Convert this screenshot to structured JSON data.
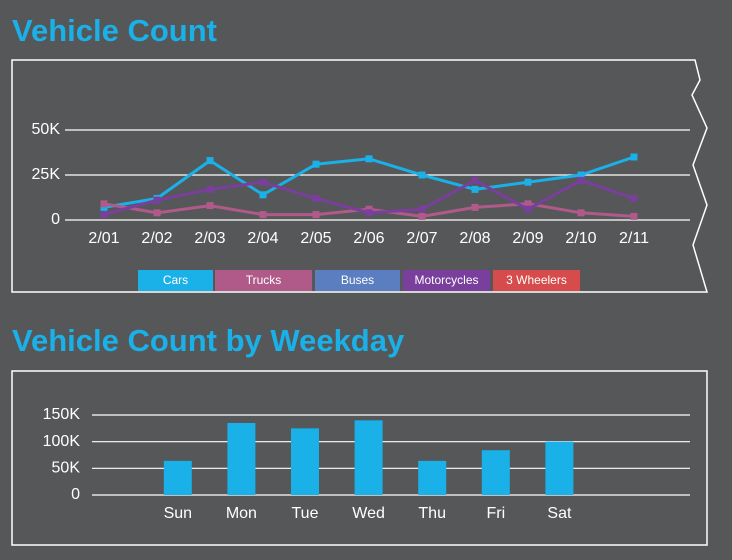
{
  "chart_data": [
    {
      "type": "line",
      "title": "Vehicle Count",
      "categories": [
        "2/01",
        "2/02",
        "2/03",
        "2/04",
        "2/05",
        "2/06",
        "2/07",
        "2/08",
        "2/09",
        "2/10",
        "2/11"
      ],
      "series": [
        {
          "name": "Cars",
          "color": "#1ab0e8",
          "values": [
            7000,
            12000,
            33000,
            14000,
            31000,
            34000,
            25000,
            17000,
            21000,
            25000,
            35000
          ]
        },
        {
          "name": "Trucks",
          "color": "#b05a8a",
          "values": [
            9000,
            4000,
            8000,
            3000,
            3000,
            6000,
            2000,
            7000,
            9000,
            4000,
            2000
          ]
        },
        {
          "name": "Buses",
          "color": "#5a7ec0",
          "values": [
            null,
            null,
            null,
            null,
            null,
            null,
            null,
            null,
            null,
            null,
            null
          ]
        },
        {
          "name": "Motorcycles",
          "color": "#7a3f9d",
          "values": [
            3000,
            11000,
            17000,
            21000,
            12000,
            4000,
            6000,
            22000,
            6000,
            22000,
            12000
          ]
        },
        {
          "name": "3 Wheelers",
          "color": "#d64b4b",
          "values": [
            null,
            null,
            null,
            null,
            null,
            null,
            null,
            null,
            null,
            null,
            null
          ]
        }
      ],
      "ylim": [
        0,
        50000
      ],
      "yticks": [
        0,
        {
          "value": 25000,
          "label": "25K"
        },
        {
          "value": 50000,
          "label": "50K"
        }
      ],
      "grid": true,
      "legend": "bottom"
    },
    {
      "type": "bar",
      "title": "Vehicle Count by Weekday",
      "categories": [
        "Sun",
        "Mon",
        "Tue",
        "Wed",
        "Thu",
        "Fri",
        "Sat"
      ],
      "values": [
        64000,
        135000,
        125000,
        140000,
        64000,
        84000,
        100000
      ],
      "color": "#1ab0e8",
      "ylim": [
        0,
        150000
      ],
      "yticks": [
        0,
        {
          "value": 50000,
          "label": "50K"
        },
        {
          "value": 100000,
          "label": "100K"
        },
        {
          "value": 150000,
          "label": "150K"
        }
      ],
      "grid": true
    }
  ]
}
